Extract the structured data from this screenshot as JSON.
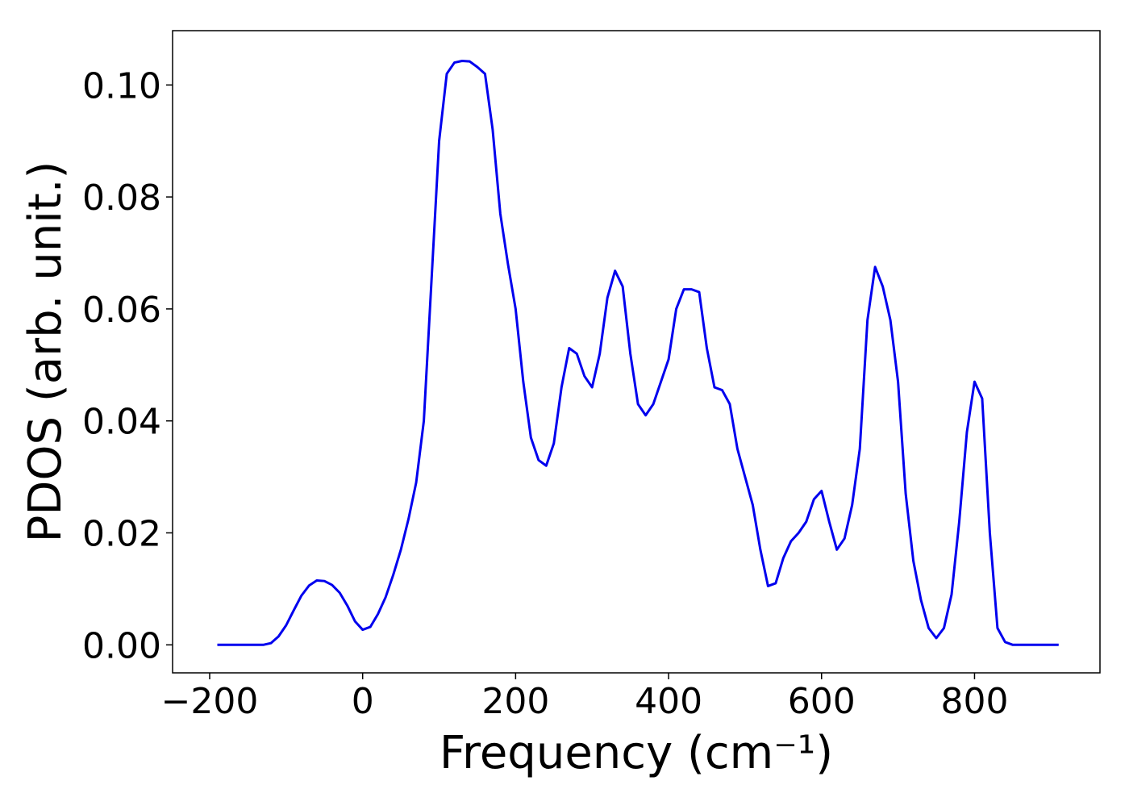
{
  "chart_data": {
    "type": "line",
    "xlabel": "Frequency (cm⁻¹)",
    "ylabel": "PDOS (arb. unit.)",
    "x": [
      -190,
      -180,
      -170,
      -160,
      -150,
      -140,
      -130,
      -120,
      -110,
      -100,
      -90,
      -80,
      -70,
      -60,
      -50,
      -40,
      -30,
      -20,
      -10,
      0,
      10,
      20,
      30,
      40,
      50,
      60,
      70,
      80,
      90,
      100,
      110,
      120,
      130,
      140,
      150,
      160,
      170,
      180,
      190,
      200,
      210,
      220,
      230,
      240,
      250,
      260,
      270,
      280,
      290,
      300,
      310,
      320,
      330,
      340,
      350,
      360,
      370,
      380,
      390,
      400,
      410,
      420,
      430,
      440,
      450,
      460,
      470,
      480,
      490,
      500,
      510,
      520,
      530,
      540,
      550,
      560,
      570,
      580,
      590,
      600,
      610,
      620,
      630,
      640,
      650,
      660,
      670,
      680,
      690,
      700,
      710,
      720,
      730,
      740,
      750,
      760,
      770,
      780,
      790,
      800,
      810,
      820,
      830,
      840,
      850,
      860,
      870,
      880,
      890,
      900,
      910
    ],
    "series": [
      {
        "name": "PDOS",
        "color": "#0000ee",
        "values": [
          0,
          0,
          0,
          0,
          0,
          0,
          0,
          0.0003,
          0.0015,
          0.0035,
          0.0062,
          0.0088,
          0.0106,
          0.0115,
          0.0114,
          0.0107,
          0.0093,
          0.007,
          0.0042,
          0.0027,
          0.0032,
          0.0055,
          0.0085,
          0.0125,
          0.017,
          0.0225,
          0.029,
          0.04,
          0.065,
          0.09,
          0.102,
          0.104,
          0.1043,
          0.1042,
          0.1032,
          0.102,
          0.092,
          0.077,
          0.068,
          0.06,
          0.047,
          0.037,
          0.033,
          0.032,
          0.036,
          0.046,
          0.053,
          0.052,
          0.048,
          0.046,
          0.052,
          0.062,
          0.0668,
          0.064,
          0.052,
          0.043,
          0.041,
          0.043,
          0.047,
          0.051,
          0.06,
          0.0635,
          0.0635,
          0.063,
          0.053,
          0.046,
          0.0455,
          0.043,
          0.035,
          0.03,
          0.025,
          0.017,
          0.0105,
          0.011,
          0.0155,
          0.0185,
          0.02,
          0.022,
          0.026,
          0.0275,
          0.022,
          0.017,
          0.019,
          0.025,
          0.035,
          0.058,
          0.0675,
          0.064,
          0.058,
          0.047,
          0.027,
          0.015,
          0.008,
          0.003,
          0.0012,
          0.003,
          0.009,
          0.022,
          0.038,
          0.047,
          0.044,
          0.02,
          0.003,
          0.0005,
          0,
          0,
          0,
          0,
          0,
          0,
          0
        ]
      }
    ],
    "xlim": [
      -248.5,
      964
    ],
    "ylim": [
      -0.005,
      0.1097
    ],
    "xticks": [
      {
        "value": -200,
        "label": "−200"
      },
      0,
      200,
      400,
      600,
      800
    ],
    "yticks": [
      {
        "value": 0,
        "label": "0.00"
      },
      {
        "value": 0.02,
        "label": "0.02"
      },
      {
        "value": 0.04,
        "label": "0.04"
      },
      {
        "value": 0.06,
        "label": "0.06"
      },
      {
        "value": 0.08,
        "label": "0.08"
      },
      {
        "value": 0.1,
        "label": "0.10"
      }
    ],
    "grid": false
  }
}
